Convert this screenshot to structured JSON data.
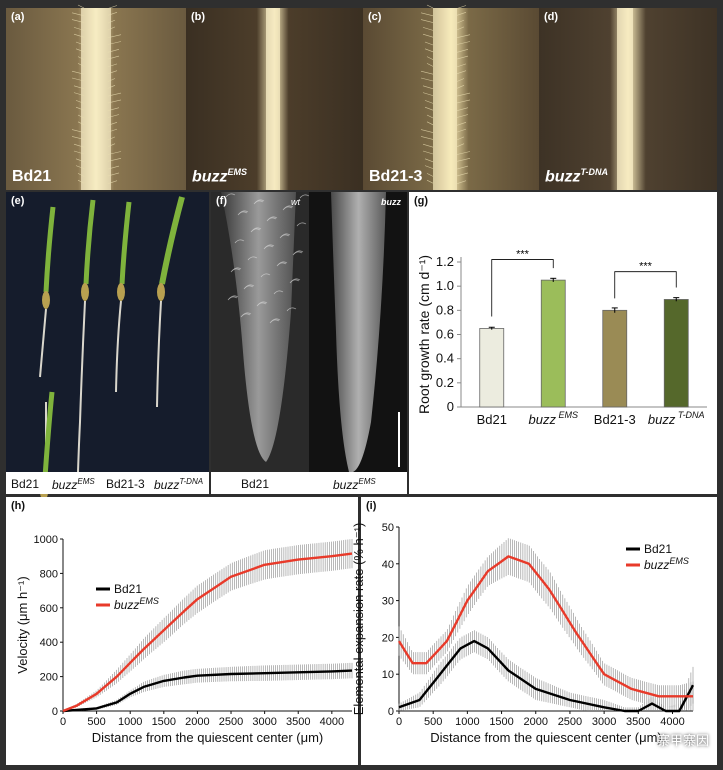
{
  "panels": {
    "a": {
      "label": "(a)",
      "caption": "Bd21"
    },
    "b": {
      "label": "(b)",
      "caption_main": "buzz",
      "caption_sup": "EMS"
    },
    "c": {
      "label": "(c)",
      "caption": "Bd21-3"
    },
    "d": {
      "label": "(d)",
      "caption_main": "buzz",
      "caption_sup": "T-DNA"
    },
    "e": {
      "label": "(e)",
      "lines": [
        {
          "main": "Bd21",
          "sup": ""
        },
        {
          "main": "buzz",
          "sup": "EMS"
        },
        {
          "main": "Bd21-3",
          "sup": ""
        },
        {
          "main": "buzz",
          "sup": "T-DNA"
        }
      ]
    },
    "f": {
      "label": "(f)",
      "left_tag": "wt",
      "right_tag": "buzz",
      "left_caption": "Bd21",
      "right_caption_main": "buzz",
      "right_caption_sup": "EMS"
    },
    "g": {
      "label": "(g)"
    },
    "h": {
      "label": "(h)"
    },
    "i": {
      "label": "(i)"
    }
  },
  "watermark": "寨甲寨因",
  "chart_data": [
    {
      "id": "g",
      "type": "bar",
      "categories": [
        "Bd21",
        "buzz EMS",
        "Bd21-3",
        "buzz T-DNA"
      ],
      "values": [
        0.65,
        1.05,
        0.8,
        0.89
      ],
      "errors": [
        0.01,
        0.015,
        0.02,
        0.015
      ],
      "colors": [
        "#ececdf",
        "#9bbd5a",
        "#9a8b55",
        "#55682b"
      ],
      "ylabel": "Root growth rate (cm d⁻¹)",
      "ylim": [
        0,
        1.2
      ],
      "yticks": [
        0,
        0.2,
        0.4,
        0.6,
        0.8,
        1.0,
        1.2
      ],
      "ytick_labels": [
        "0",
        "0.2",
        "0.4",
        "0.6",
        "0.8",
        "1.0",
        "1.2"
      ],
      "annotations": [
        "***",
        "***"
      ]
    },
    {
      "id": "h",
      "type": "line",
      "xlabel": "Distance from the quiescent center (μm)",
      "ylabel": "Velocity (μm h⁻¹)",
      "xlim": [
        0,
        4300
      ],
      "ylim": [
        0,
        1000
      ],
      "xticks": [
        0,
        500,
        1000,
        1500,
        2000,
        2500,
        3000,
        3500,
        4000
      ],
      "yticks": [
        0,
        200,
        400,
        600,
        800,
        1000
      ],
      "legend": "middle-left",
      "series": [
        {
          "name": "Bd21",
          "color": "#000000",
          "x": [
            0,
            500,
            800,
            1000,
            1200,
            1500,
            1800,
            2000,
            2500,
            3000,
            3500,
            4000,
            4300
          ],
          "y": [
            0,
            15,
            50,
            100,
            140,
            175,
            195,
            205,
            215,
            220,
            225,
            230,
            235
          ],
          "err": [
            5,
            8,
            15,
            20,
            30,
            35,
            40,
            40,
            42,
            45,
            45,
            45,
            45
          ]
        },
        {
          "name": "buzz EMS",
          "color": "#e83a2a",
          "x": [
            0,
            200,
            500,
            800,
            1000,
            1200,
            1500,
            1800,
            2000,
            2500,
            3000,
            3500,
            4000,
            4300
          ],
          "y": [
            0,
            30,
            100,
            200,
            280,
            360,
            470,
            580,
            650,
            780,
            850,
            880,
            900,
            915
          ],
          "err": [
            5,
            10,
            20,
            40,
            50,
            60,
            70,
            75,
            80,
            80,
            85,
            85,
            85,
            85
          ]
        }
      ]
    },
    {
      "id": "i",
      "type": "line",
      "xlabel": "Distance from the quiescent center (μm)",
      "ylabel": "Elemental expansion rate (% h⁻¹)",
      "xlim": [
        0,
        4300
      ],
      "ylim": [
        0,
        50
      ],
      "xticks": [
        0,
        500,
        1000,
        1500,
        2000,
        2500,
        3000,
        3500,
        4000
      ],
      "yticks": [
        0,
        10,
        20,
        30,
        40,
        50
      ],
      "legend": "top-right",
      "series": [
        {
          "name": "Bd21",
          "color": "#000000",
          "x": [
            0,
            300,
            600,
            900,
            1100,
            1300,
            1600,
            2000,
            2500,
            3000,
            3300,
            3500,
            3700,
            3900,
            4100,
            4300
          ],
          "y": [
            1,
            3,
            10,
            17,
            19,
            17,
            11,
            6,
            3,
            1,
            0,
            0,
            2,
            0,
            0,
            7
          ],
          "err": [
            1,
            2,
            3,
            3,
            3,
            3,
            3,
            3,
            2,
            2,
            1,
            1,
            2,
            1,
            2,
            5
          ]
        },
        {
          "name": "buzz EMS",
          "color": "#e83a2a",
          "x": [
            0,
            200,
            400,
            700,
            1000,
            1300,
            1600,
            1900,
            2200,
            2600,
            3000,
            3400,
            3800,
            4100,
            4300
          ],
          "y": [
            19,
            13,
            13,
            19,
            30,
            38,
            42,
            40,
            33,
            21,
            10,
            6,
            4,
            4,
            4
          ],
          "err": [
            4,
            3,
            3,
            3,
            4,
            4,
            5,
            5,
            5,
            4,
            3,
            3,
            3,
            3,
            4
          ]
        }
      ]
    }
  ]
}
